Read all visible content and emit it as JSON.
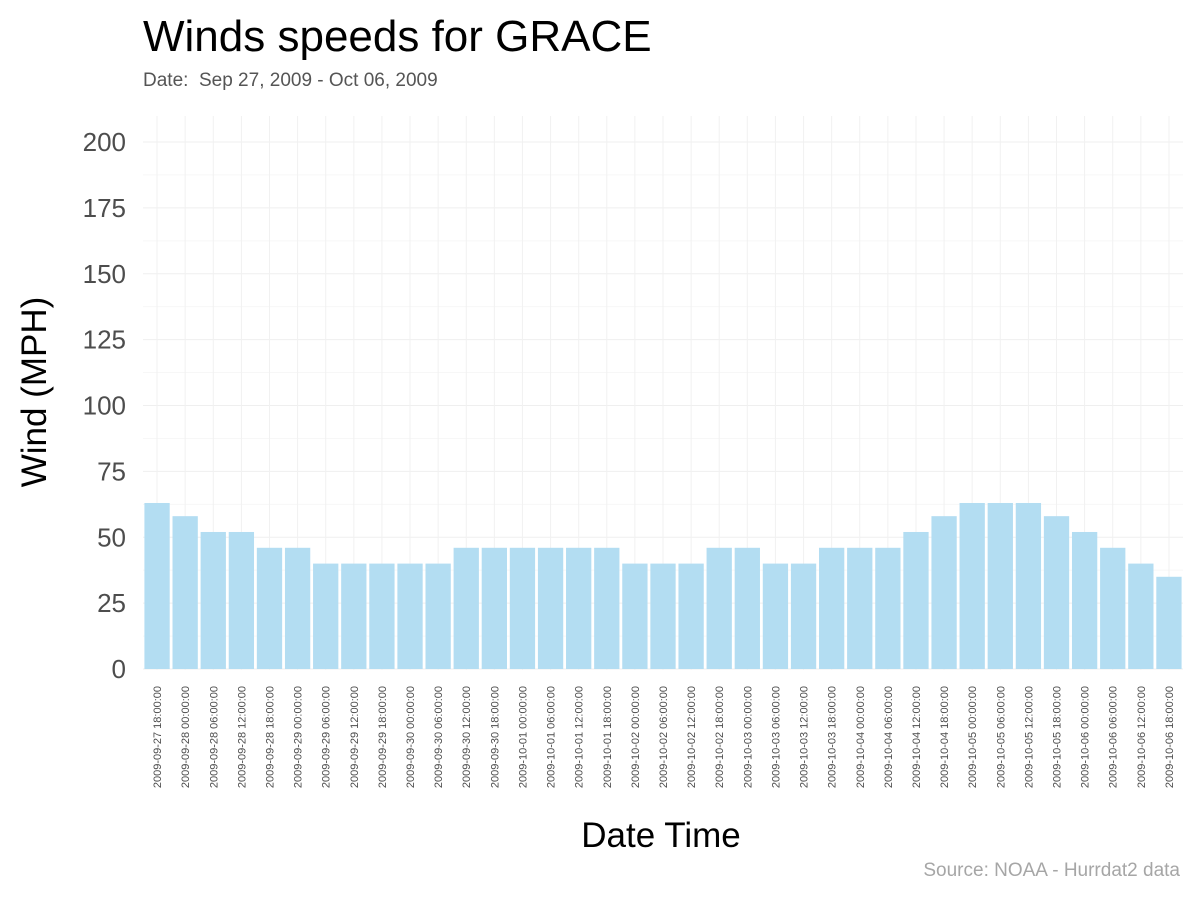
{
  "chart_data": {
    "type": "bar",
    "title": "Winds speeds for GRACE",
    "subtitle": "Date:  Sep 27, 2009 - Oct 06, 2009",
    "xlabel": "Date Time",
    "ylabel": "Wind (MPH)",
    "caption": "Source: NOAA - Hurrdat2 data",
    "ylim": [
      0,
      210
    ],
    "yticks": [
      0,
      25,
      50,
      75,
      100,
      125,
      150,
      175,
      200
    ],
    "grid": true,
    "bar_color": "#b3ddf2",
    "categories": [
      "2009-09-27 18:00:00",
      "2009-09-28 00:00:00",
      "2009-09-28 06:00:00",
      "2009-09-28 12:00:00",
      "2009-09-28 18:00:00",
      "2009-09-29 00:00:00",
      "2009-09-29 06:00:00",
      "2009-09-29 12:00:00",
      "2009-09-29 18:00:00",
      "2009-09-30 00:00:00",
      "2009-09-30 06:00:00",
      "2009-09-30 12:00:00",
      "2009-09-30 18:00:00",
      "2009-10-01 00:00:00",
      "2009-10-01 06:00:00",
      "2009-10-01 12:00:00",
      "2009-10-01 18:00:00",
      "2009-10-02 00:00:00",
      "2009-10-02 06:00:00",
      "2009-10-02 12:00:00",
      "2009-10-02 18:00:00",
      "2009-10-03 00:00:00",
      "2009-10-03 06:00:00",
      "2009-10-03 12:00:00",
      "2009-10-03 18:00:00",
      "2009-10-04 00:00:00",
      "2009-10-04 06:00:00",
      "2009-10-04 12:00:00",
      "2009-10-04 18:00:00",
      "2009-10-05 00:00:00",
      "2009-10-05 06:00:00",
      "2009-10-05 12:00:00",
      "2009-10-05 18:00:00",
      "2009-10-06 00:00:00",
      "2009-10-06 06:00:00",
      "2009-10-06 12:00:00",
      "2009-10-06 18:00:00"
    ],
    "values": [
      63,
      58,
      52,
      52,
      46,
      46,
      40,
      40,
      40,
      40,
      40,
      46,
      46,
      46,
      46,
      46,
      46,
      40,
      40,
      40,
      46,
      46,
      40,
      40,
      46,
      46,
      46,
      52,
      58,
      63,
      63,
      63,
      58,
      52,
      46,
      40,
      35
    ]
  }
}
